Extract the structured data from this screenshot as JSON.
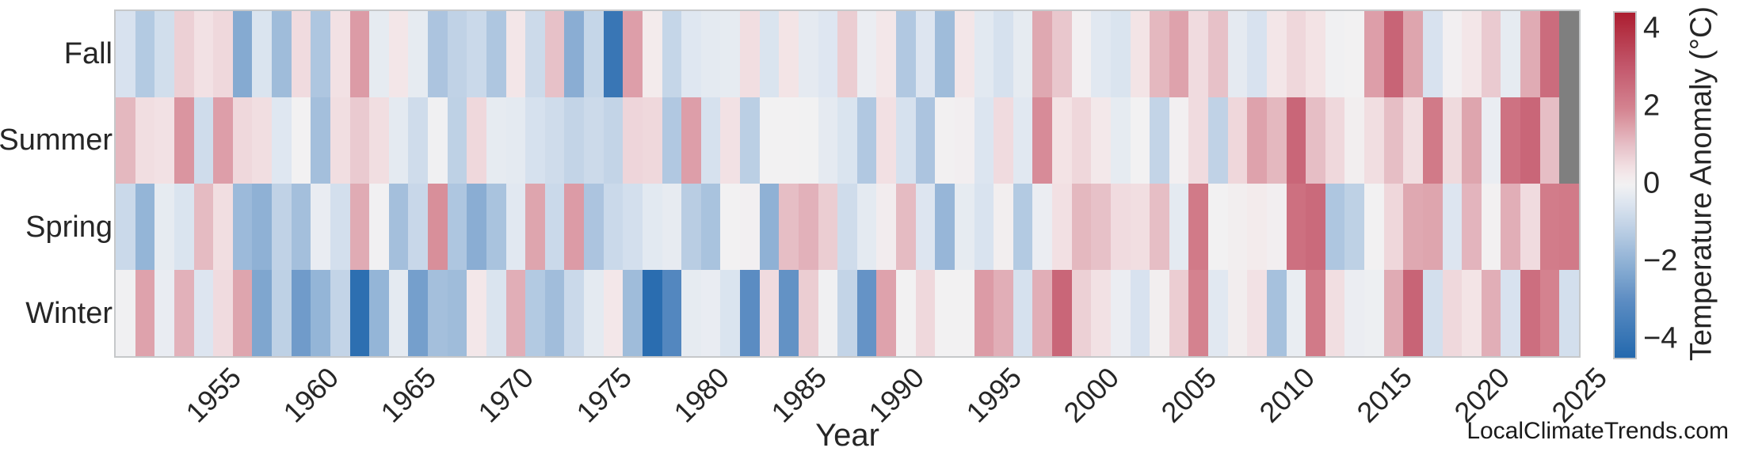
{
  "page": {
    "watermark": "LocalClimateTrends.com"
  },
  "chart_data": {
    "type": "heatmap",
    "title": "",
    "xlabel": "Year",
    "x_start": 1950,
    "x_end": 2024,
    "x_ticks": [
      1955,
      1960,
      1965,
      1970,
      1975,
      1980,
      1985,
      1990,
      1995,
      2000,
      2005,
      2010,
      2015,
      2020,
      2025
    ],
    "rows": [
      "Fall",
      "Summer",
      "Spring",
      "Winter"
    ],
    "series": [
      {
        "name": "Fall",
        "values": [
          -0.55,
          -1.3,
          -0.7,
          0.75,
          0.45,
          0.6,
          -2.2,
          -0.5,
          -1.7,
          0.55,
          -1.4,
          0.45,
          1.6,
          -0.25,
          0.35,
          -0.25,
          -1.45,
          -1.05,
          -0.85,
          -1.4,
          0.35,
          -0.8,
          1.0,
          -2.1,
          -0.95,
          -3.9,
          1.55,
          0.2,
          -0.95,
          -0.4,
          -0.3,
          -0.25,
          0.5,
          -0.5,
          0.4,
          -0.27,
          -0.42,
          0.8,
          -0.15,
          0.3,
          -1.35,
          -0.45,
          -1.7,
          0.35,
          -0.33,
          -0.6,
          -0.25,
          1.4,
          0.9,
          0.05,
          -0.35,
          -0.5,
          0.4,
          1.15,
          1.5,
          0.55,
          1.0,
          -0.27,
          -0.55,
          0.33,
          0.62,
          0.42,
          -0.05,
          0.0,
          1.55,
          2.75,
          1.45,
          -0.55,
          0.05,
          0.35,
          0.85,
          -0.25,
          1.35,
          2.55,
          null
        ]
      },
      {
        "name": "Summer",
        "values": [
          1.15,
          0.5,
          0.45,
          1.7,
          -0.75,
          1.55,
          0.6,
          0.5,
          -0.4,
          0.0,
          -1.6,
          0.5,
          0.85,
          0.5,
          -0.3,
          -0.75,
          -0.05,
          -1.1,
          0.6,
          -0.25,
          -0.3,
          -0.6,
          -0.75,
          -1.0,
          -0.8,
          -1.0,
          0.65,
          0.6,
          -1.35,
          1.55,
          -0.6,
          0.45,
          -1.15,
          0.0,
          0.0,
          -0.02,
          -0.27,
          -0.5,
          -1.35,
          0.47,
          -0.6,
          -1.45,
          0.03,
          0.08,
          -0.47,
          0.55,
          -0.35,
          1.85,
          0.42,
          0.62,
          0.27,
          -0.25,
          0.0,
          -1.0,
          0.05,
          0.55,
          -1.05,
          0.62,
          1.5,
          1.15,
          2.7,
          1.05,
          0.6,
          0.1,
          0.5,
          1.05,
          0.5,
          2.2,
          0.58,
          1.45,
          -0.17,
          2.4,
          2.7,
          1.05,
          null
        ]
      },
      {
        "name": "Spring",
        "values": [
          -0.85,
          -1.9,
          -0.25,
          -0.5,
          1.1,
          0.5,
          -1.75,
          -2.0,
          -1.05,
          -1.6,
          -0.2,
          -0.65,
          1.35,
          -0.03,
          -1.6,
          -0.9,
          1.8,
          -1.4,
          -2.1,
          -1.5,
          -0.35,
          1.45,
          -0.85,
          1.6,
          -1.45,
          -0.85,
          -0.65,
          -0.33,
          -0.23,
          -1.2,
          -1.5,
          0.0,
          0.05,
          -2.0,
          1.05,
          1.25,
          0.8,
          -0.75,
          -0.3,
          0.15,
          1.1,
          -0.45,
          -1.85,
          -0.25,
          -0.52,
          0.1,
          -1.3,
          -0.15,
          0.47,
          1.15,
          1.0,
          0.55,
          0.5,
          1.05,
          -0.3,
          2.2,
          0.0,
          0.1,
          0.2,
          0.08,
          2.45,
          2.6,
          -1.4,
          -1.1,
          0.0,
          0.62,
          1.4,
          1.45,
          -0.45,
          1.2,
          0.02,
          1.3,
          0.55,
          2.15,
          2.2
        ]
      },
      {
        "name": "Winter",
        "values": [
          -0.05,
          1.5,
          -0.2,
          1.25,
          -0.45,
          0.55,
          1.45,
          -2.3,
          -1.1,
          -2.6,
          -1.9,
          -1.0,
          -4.2,
          -1.9,
          -0.3,
          -2.5,
          -1.6,
          -1.7,
          0.3,
          -0.5,
          1.3,
          -1.3,
          -1.65,
          -0.85,
          -0.3,
          0.3,
          -1.7,
          -4.3,
          -3.2,
          -0.25,
          -0.2,
          -0.5,
          -3.0,
          0.55,
          -2.85,
          0.8,
          -0.05,
          -1.0,
          -2.8,
          1.5,
          0.0,
          0.6,
          0.0,
          0.0,
          1.6,
          1.3,
          -0.6,
          1.3,
          2.7,
          0.75,
          0.45,
          -0.15,
          -0.55,
          0.1,
          0.8,
          2.0,
          -0.35,
          0.12,
          0.45,
          -1.55,
          -0.18,
          2.2,
          0.5,
          -0.15,
          -0.1,
          1.35,
          2.75,
          -0.65,
          0.6,
          0.4,
          1.3,
          -0.55,
          2.5,
          2.0,
          -0.65
        ]
      }
    ],
    "colorbar": {
      "label": "Temperature Anomaly (°C)",
      "vmin": -4.45,
      "vmax": 4.45,
      "ticks": [
        {
          "label": "4",
          "value": 4
        },
        {
          "label": "2",
          "value": 2
        },
        {
          "label": "0",
          "value": 0
        },
        {
          "label": "−2",
          "value": -2
        },
        {
          "label": "−4",
          "value": -4
        }
      ]
    },
    "missing_color": "#7f7f7f",
    "colormap_stops": [
      {
        "v": -4.5,
        "c": "#2268ad"
      },
      {
        "v": -3.0,
        "c": "#5b8cc2"
      },
      {
        "v": -2.0,
        "c": "#8fb1d5"
      },
      {
        "v": -1.0,
        "c": "#c3d4e7"
      },
      {
        "v": -0.4,
        "c": "#dfe7f1"
      },
      {
        "v": 0.0,
        "c": "#f2f1f2"
      },
      {
        "v": 0.4,
        "c": "#f3e4e6"
      },
      {
        "v": 1.0,
        "c": "#e7c1c8"
      },
      {
        "v": 2.0,
        "c": "#d4828f"
      },
      {
        "v": 3.0,
        "c": "#c45a6e"
      },
      {
        "v": 4.5,
        "c": "#ab1c2e"
      }
    ],
    "legend_position": "right-colorbar",
    "grid": false
  }
}
